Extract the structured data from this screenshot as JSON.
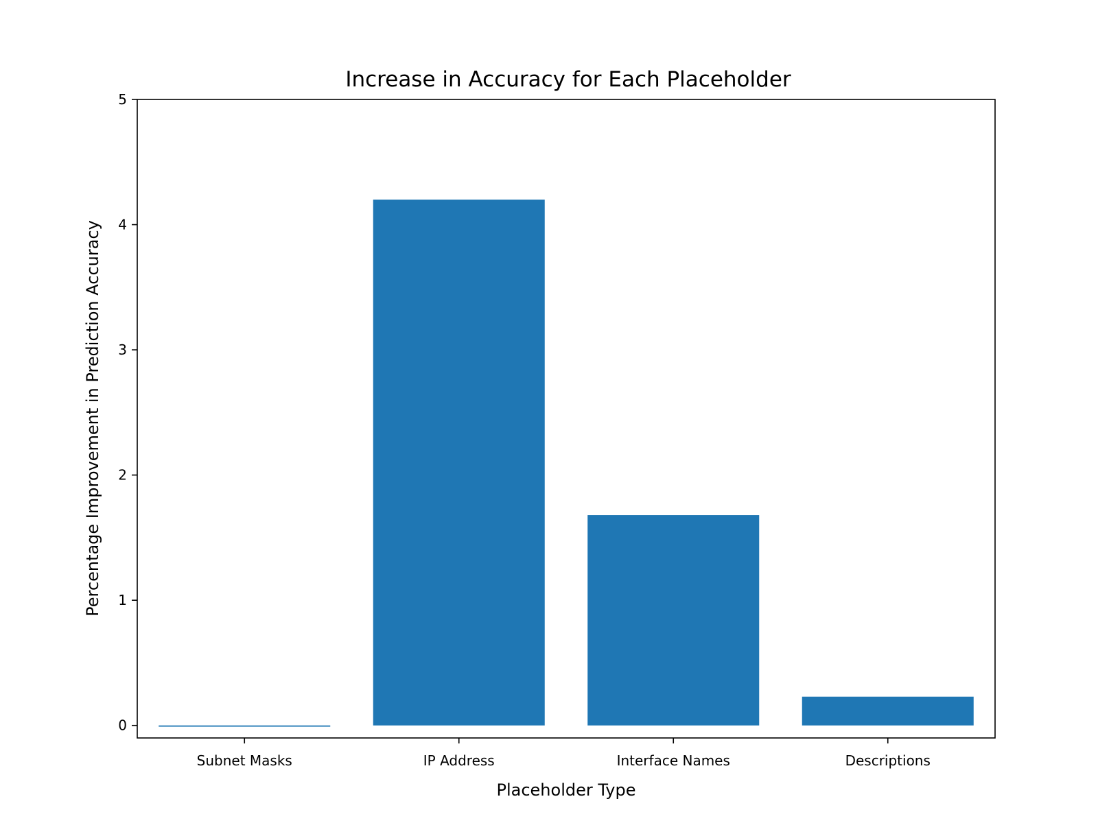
{
  "chart_data": {
    "type": "bar",
    "title": "Increase in Accuracy for Each Placeholder",
    "xlabel": "Placeholder Type",
    "ylabel": "Percentage Improvement in Prediction Accuracy",
    "categories": [
      "Subnet Masks",
      "IP Address",
      "Interface Names",
      "Descriptions"
    ],
    "values": [
      -0.01,
      4.2,
      1.68,
      0.23
    ],
    "ylim": [
      -0.1,
      5
    ],
    "yticks": [
      "0",
      "1",
      "2",
      "3",
      "4",
      "5"
    ],
    "grid": false,
    "bar_color": "#1f77b4"
  }
}
